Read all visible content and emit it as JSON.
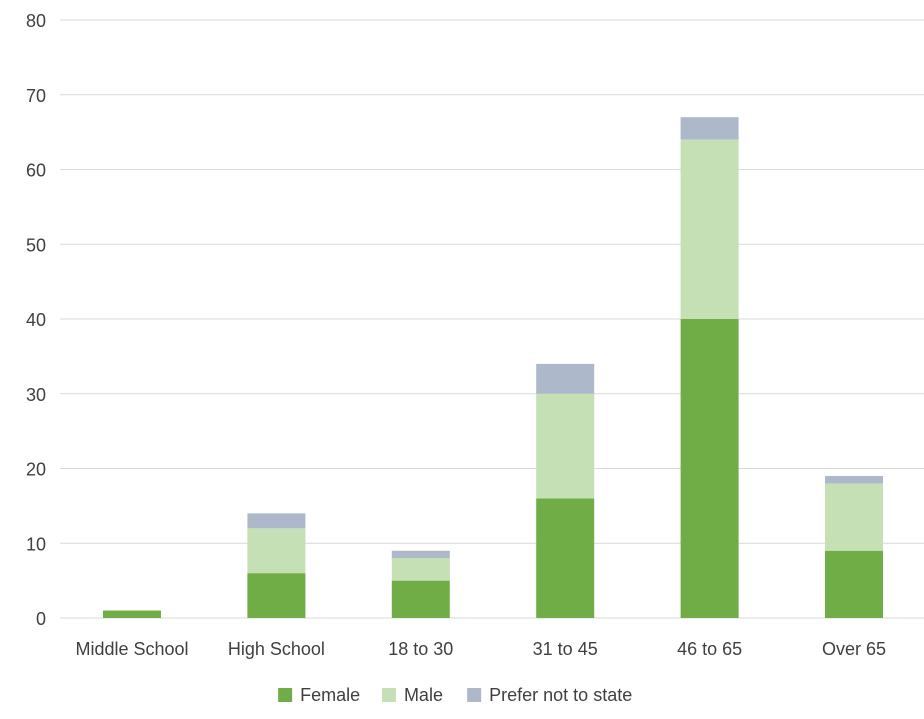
{
  "chart_data": {
    "type": "bar",
    "stacked": true,
    "title": "",
    "xlabel": "",
    "ylabel": "",
    "ylim": [
      0,
      80
    ],
    "yticks": [
      0,
      10,
      20,
      30,
      40,
      50,
      60,
      70,
      80
    ],
    "grid": true,
    "legend_position": "bottom",
    "categories": [
      "Middle School",
      "High School",
      "18 to 30",
      "31 to 45",
      "46 to 65",
      "Over 65"
    ],
    "series": [
      {
        "name": "Female",
        "color": "#70ad47",
        "values": [
          1,
          6,
          5,
          16,
          40,
          9
        ]
      },
      {
        "name": "Male",
        "color": "#c5e0b4",
        "values": [
          0,
          6,
          3,
          14,
          24,
          9
        ]
      },
      {
        "name": "Prefer not to state",
        "color": "#adb9ca",
        "values": [
          0,
          2,
          1,
          4,
          3,
          1
        ]
      }
    ]
  }
}
